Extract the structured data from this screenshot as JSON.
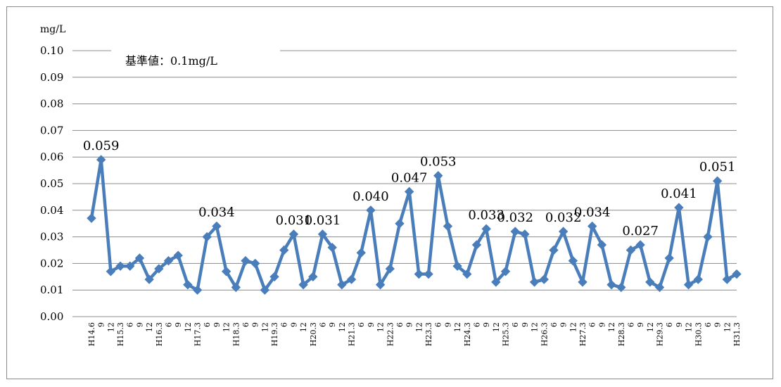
{
  "chart_data": {
    "type": "line",
    "ylabel": "mg/L",
    "ylim": [
      0,
      0.1
    ],
    "yticks": [
      "0.00",
      "0.01",
      "0.02",
      "0.03",
      "0.04",
      "0.05",
      "0.06",
      "0.07",
      "0.08",
      "0.09",
      "0.10"
    ],
    "grid": true,
    "standard_label": "基準値：0.1mg/L",
    "color": "#4a7ebb",
    "categories": [
      "H14.6",
      "9",
      "12",
      "H15.3",
      "6",
      "9",
      "12",
      "H16.3",
      "6",
      "9",
      "12",
      "H17.3",
      "6",
      "9",
      "12",
      "H18.3",
      "6",
      "9",
      "12",
      "H19.3",
      "6",
      "9",
      "12",
      "H20.3",
      "6",
      "9",
      "12",
      "H21.3",
      "6",
      "9",
      "12",
      "H22.3",
      "6",
      "9",
      "12",
      "H23.3",
      "6",
      "9",
      "12",
      "H24.3",
      "6",
      "9",
      "12",
      "H25.3",
      "6",
      "9",
      "12",
      "H26.3",
      "6",
      "9",
      "12",
      "H27.3",
      "6",
      "9",
      "12",
      "H28.3",
      "6",
      "9",
      "12",
      "H29.3",
      "6",
      "9",
      "12",
      "H30.3",
      "6",
      "9",
      "12",
      "H31.3"
    ],
    "values": [
      0.037,
      0.059,
      0.017,
      0.019,
      0.019,
      0.022,
      0.014,
      0.018,
      0.021,
      0.023,
      0.012,
      0.01,
      0.03,
      0.034,
      0.017,
      0.011,
      0.021,
      0.02,
      0.01,
      0.015,
      0.025,
      0.031,
      0.012,
      0.015,
      0.031,
      0.026,
      0.012,
      0.014,
      0.024,
      0.04,
      0.012,
      0.018,
      0.035,
      0.047,
      0.016,
      0.016,
      0.053,
      0.034,
      0.019,
      0.016,
      0.027,
      0.033,
      0.013,
      0.017,
      0.032,
      0.031,
      0.013,
      0.014,
      0.025,
      0.032,
      0.021,
      0.013,
      0.034,
      0.027,
      0.012,
      0.011,
      0.025,
      0.027,
      0.013,
      0.011,
      0.022,
      0.041,
      0.012,
      0.014,
      0.03,
      0.051,
      0.014,
      0.016
    ],
    "data_labels": [
      {
        "index": 1,
        "text": "0.059"
      },
      {
        "index": 13,
        "text": "0.034"
      },
      {
        "index": 21,
        "text": "0.031"
      },
      {
        "index": 24,
        "text": "0.031"
      },
      {
        "index": 29,
        "text": "0.040"
      },
      {
        "index": 33,
        "text": "0.047"
      },
      {
        "index": 36,
        "text": "0.053"
      },
      {
        "index": 41,
        "text": "0.033"
      },
      {
        "index": 44,
        "text": "0.032"
      },
      {
        "index": 49,
        "text": "0.032"
      },
      {
        "index": 52,
        "text": "0.034"
      },
      {
        "index": 57,
        "text": "0.027"
      },
      {
        "index": 61,
        "text": "0.041"
      },
      {
        "index": 65,
        "text": "0.051"
      }
    ]
  }
}
